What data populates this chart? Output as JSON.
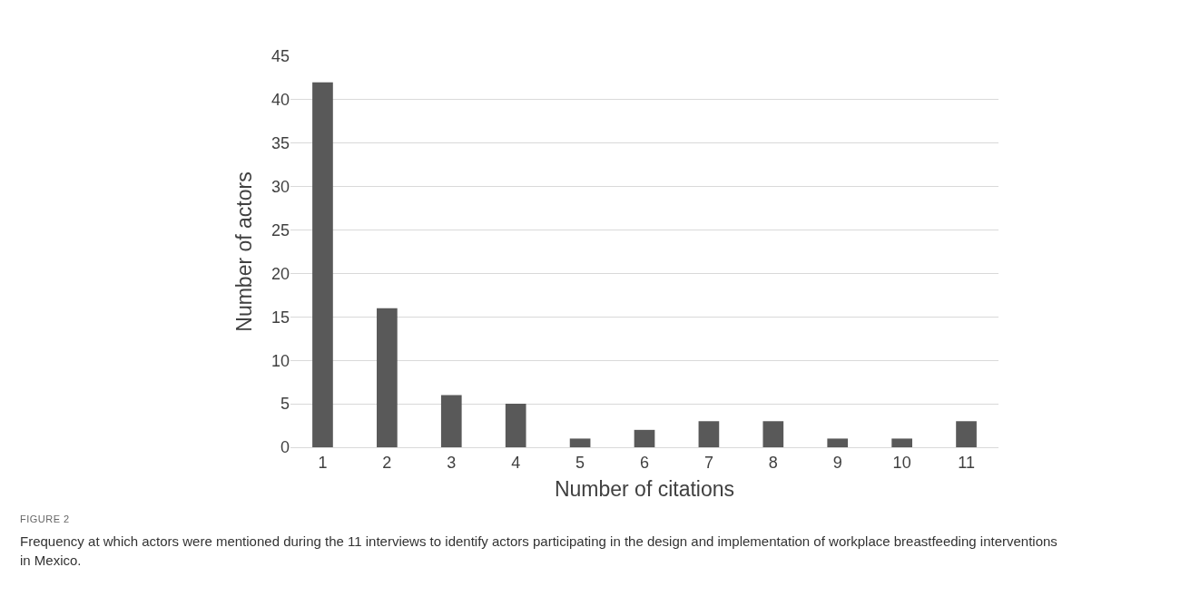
{
  "chart_data": {
    "type": "bar",
    "xlabel": "Number of citations",
    "ylabel": "Number of actors",
    "categories": [
      "1",
      "2",
      "3",
      "4",
      "5",
      "6",
      "7",
      "8",
      "9",
      "10",
      "11"
    ],
    "values": [
      42,
      16,
      6,
      5,
      1,
      2,
      3,
      3,
      1,
      1,
      3
    ],
    "color": "#595959",
    "ylim": [
      0,
      45
    ],
    "yticks": [
      0,
      5,
      10,
      15,
      20,
      25,
      30,
      35,
      40,
      45
    ],
    "grid": "y",
    "annotations": [
      "FIGURE 2",
      "Frequency at which actors were mentioned during the 11 interviews to identify actors participating in the design and implementation of workplace breastfeeding interventions in Mexico."
    ]
  }
}
